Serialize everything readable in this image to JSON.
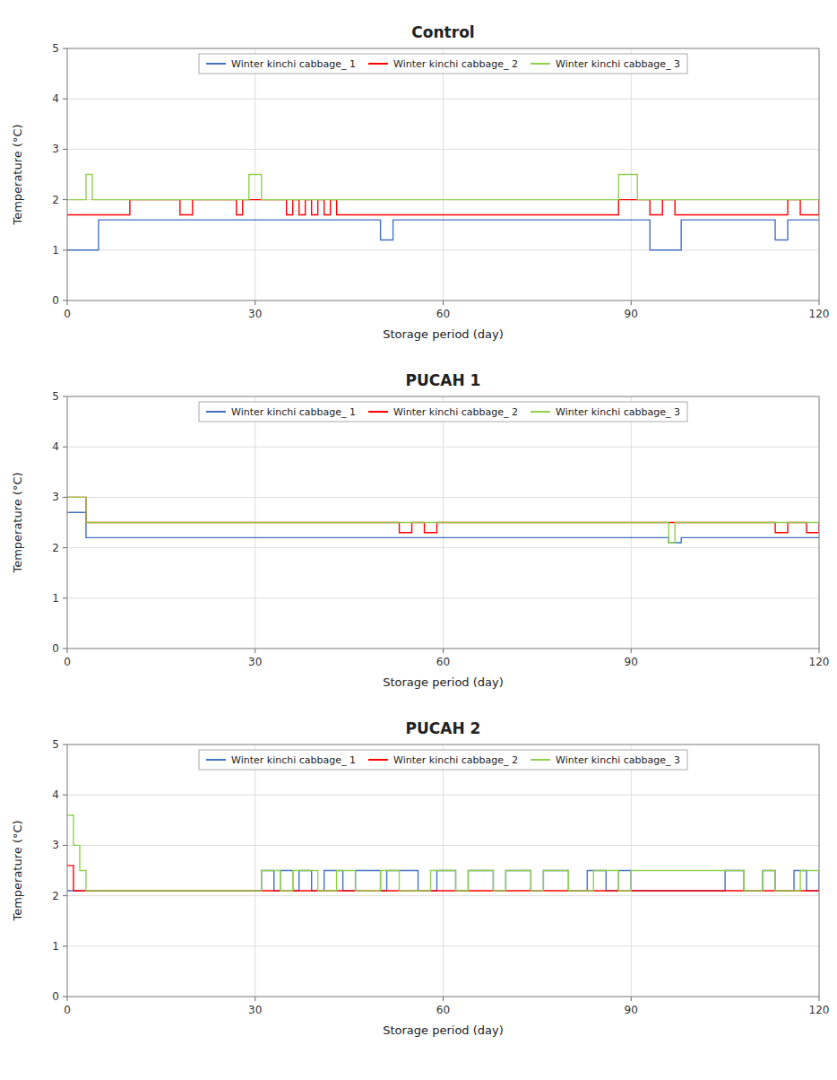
{
  "chart_data": [
    {
      "type": "line",
      "line_style": "step",
      "title": "Control",
      "xlabel": "Storage period (day)",
      "ylabel": "Temperature (°C)",
      "xlim": [
        0,
        120
      ],
      "ylim": [
        0,
        5
      ],
      "xticks": [
        0,
        30,
        60,
        90,
        120
      ],
      "yticks": [
        0,
        1,
        2,
        3,
        4,
        5
      ],
      "grid": true,
      "legend": "top",
      "series": [
        {
          "name": "Winter kinchi cabbage_ 1",
          "color": "#4472C4",
          "x": [
            0,
            5,
            18,
            27,
            36,
            42,
            50,
            52,
            85,
            93,
            98,
            113,
            115,
            120
          ],
          "values": [
            1.0,
            1.6,
            1.6,
            1.6,
            1.6,
            1.6,
            1.2,
            1.6,
            1.6,
            1.0,
            1.6,
            1.2,
            1.6,
            1.6
          ]
        },
        {
          "name": "Winter kinchi cabbage_ 2",
          "color": "#FF0000",
          "x": [
            0,
            10,
            18,
            20,
            27,
            28,
            35,
            36,
            37,
            38,
            39,
            40,
            41,
            42,
            43,
            50,
            52,
            85,
            88,
            93,
            95,
            97,
            113,
            115,
            117,
            120
          ],
          "values": [
            1.7,
            2.0,
            1.7,
            2.0,
            1.7,
            2.0,
            1.7,
            2.0,
            1.7,
            2.0,
            1.7,
            2.0,
            1.7,
            2.0,
            1.7,
            1.7,
            1.7,
            1.7,
            2.0,
            1.7,
            2.0,
            1.7,
            1.7,
            2.0,
            1.7,
            2.0
          ]
        },
        {
          "name": "Winter kinchi cabbage_ 3",
          "color": "#92D050",
          "x": [
            0,
            3,
            4,
            27,
            29,
            31,
            85,
            88,
            91,
            120
          ],
          "values": [
            2.0,
            2.5,
            2.0,
            2.0,
            2.5,
            2.0,
            2.0,
            2.5,
            2.0,
            2.0
          ]
        }
      ]
    },
    {
      "type": "line",
      "line_style": "step",
      "title": "PUCAH 1",
      "xlabel": "Storage period (day)",
      "ylabel": "Temperature (°C)",
      "xlim": [
        0,
        120
      ],
      "ylim": [
        0,
        5
      ],
      "xticks": [
        0,
        30,
        60,
        90,
        120
      ],
      "yticks": [
        0,
        1,
        2,
        3,
        4,
        5
      ],
      "grid": true,
      "legend": "top",
      "series": [
        {
          "name": "Winter kinchi cabbage_ 1",
          "color": "#4472C4",
          "x": [
            0,
            3,
            93,
            96,
            98,
            120
          ],
          "values": [
            2.7,
            2.2,
            2.2,
            2.1,
            2.2,
            2.2
          ]
        },
        {
          "name": "Winter kinchi cabbage_ 2",
          "color": "#FF0000",
          "x": [
            0,
            3,
            52,
            53,
            55,
            57,
            59,
            93,
            96,
            113,
            115,
            118,
            120
          ],
          "values": [
            3.0,
            2.5,
            2.5,
            2.3,
            2.5,
            2.3,
            2.5,
            2.5,
            2.5,
            2.3,
            2.5,
            2.3,
            2.5
          ]
        },
        {
          "name": "Winter kinchi cabbage_ 3",
          "color": "#92D050",
          "x": [
            0,
            3,
            93,
            96,
            97,
            120
          ],
          "values": [
            3.0,
            2.5,
            2.5,
            2.1,
            2.5,
            2.5
          ]
        }
      ]
    },
    {
      "type": "line",
      "line_style": "step",
      "title": "PUCAH 2",
      "xlabel": "Storage period (day)",
      "ylabel": "Temperature (°C)",
      "xlim": [
        0,
        120
      ],
      "ylim": [
        0,
        5
      ],
      "xticks": [
        0,
        30,
        60,
        90,
        120
      ],
      "yticks": [
        0,
        1,
        2,
        3,
        4,
        5
      ],
      "grid": true,
      "legend": "top",
      "series": [
        {
          "name": "Winter kinchi cabbage_ 1",
          "color": "#4472C4",
          "x": [
            0,
            3,
            30,
            31,
            33,
            34,
            36,
            37,
            39,
            41,
            44,
            46,
            50,
            51,
            56,
            59,
            62,
            64,
            68,
            70,
            74,
            76,
            80,
            83,
            86,
            88,
            90,
            101,
            105,
            108,
            111,
            113,
            116,
            118,
            120
          ],
          "values": [
            2.1,
            2.1,
            2.1,
            2.5,
            2.1,
            2.5,
            2.1,
            2.5,
            2.1,
            2.5,
            2.1,
            2.5,
            2.1,
            2.5,
            2.1,
            2.5,
            2.1,
            2.5,
            2.1,
            2.5,
            2.1,
            2.5,
            2.1,
            2.5,
            2.1,
            2.5,
            2.1,
            2.1,
            2.5,
            2.1,
            2.5,
            2.1,
            2.5,
            2.1,
            2.5
          ]
        },
        {
          "name": "Winter kinchi cabbage_ 2",
          "color": "#FF0000",
          "x": [
            0,
            1,
            90,
            101,
            120
          ],
          "values": [
            2.6,
            2.1,
            2.1,
            2.1,
            2.1
          ]
        },
        {
          "name": "Winter kinchi cabbage_ 3",
          "color": "#92D050",
          "x": [
            0,
            1,
            2,
            3,
            30,
            31,
            34,
            36,
            40,
            43,
            46,
            50,
            53,
            58,
            62,
            64,
            68,
            70,
            74,
            76,
            80,
            84,
            88,
            90,
            101,
            105,
            108,
            111,
            113,
            117,
            120
          ],
          "values": [
            3.6,
            3.0,
            2.5,
            2.1,
            2.1,
            2.5,
            2.1,
            2.5,
            2.1,
            2.5,
            2.1,
            2.5,
            2.1,
            2.5,
            2.1,
            2.5,
            2.1,
            2.5,
            2.1,
            2.5,
            2.1,
            2.5,
            2.1,
            2.5,
            2.5,
            2.5,
            2.1,
            2.5,
            2.1,
            2.5,
            2.5
          ]
        }
      ]
    }
  ]
}
